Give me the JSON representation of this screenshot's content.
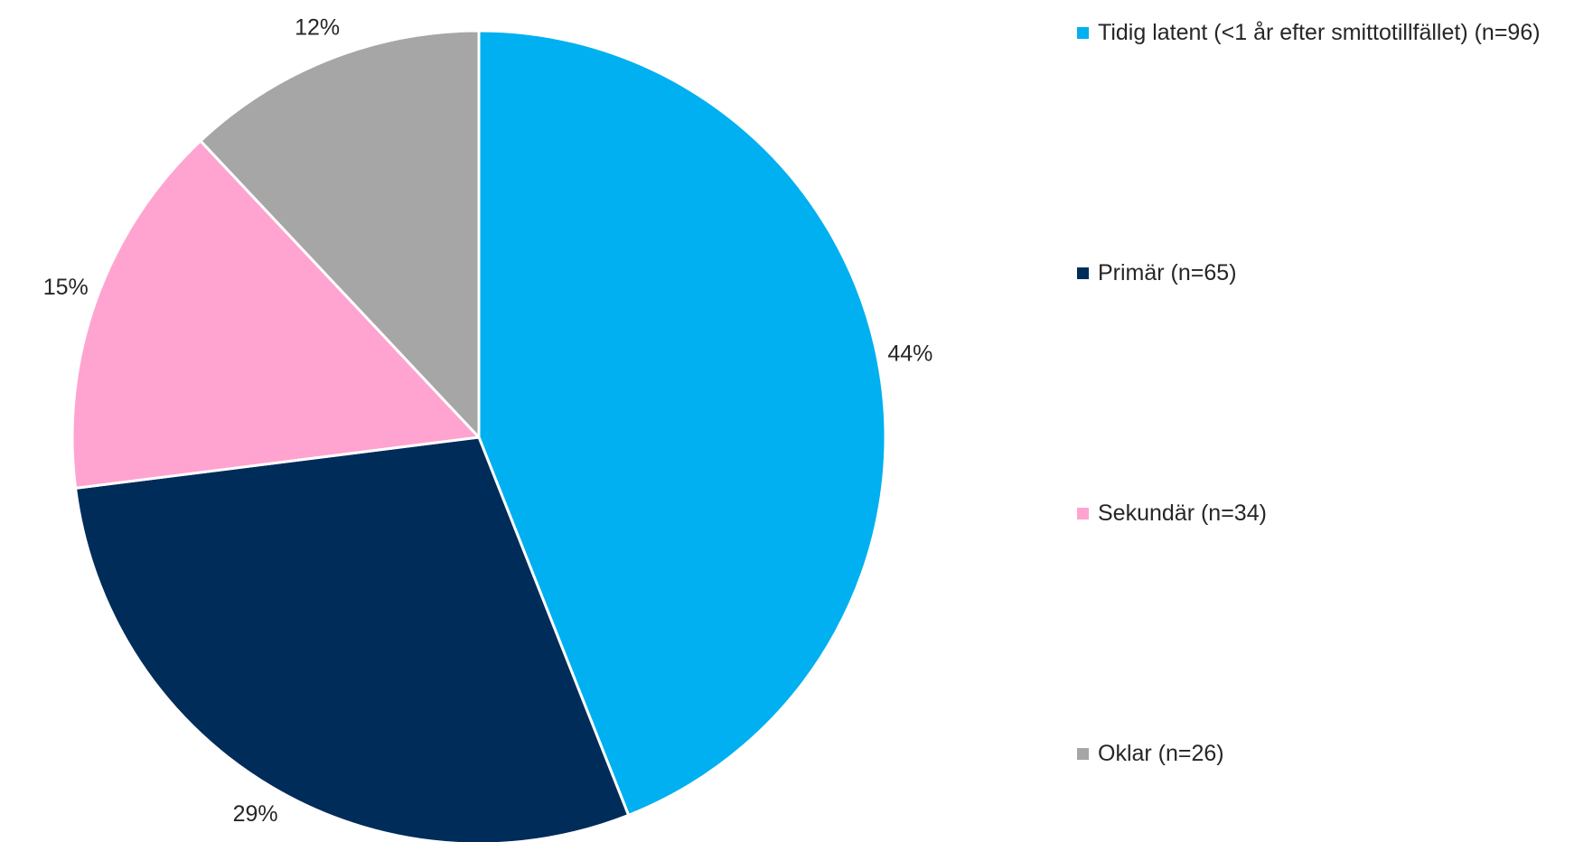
{
  "chart_data": {
    "type": "pie",
    "categories": [
      "Tidig latent (<1 år efter smittotillfället) (n=96)",
      "Primär (n=65)",
      "Sekundär (n=34)",
      "Oklar (n=26)"
    ],
    "values": [
      44,
      29,
      15,
      12
    ],
    "value_labels": [
      "44%",
      "29%",
      "15%",
      "12%"
    ],
    "colors": [
      "#00b0f0",
      "#002c5a",
      "#ffa3d0",
      "#a6a6a6"
    ],
    "legend": "right"
  }
}
